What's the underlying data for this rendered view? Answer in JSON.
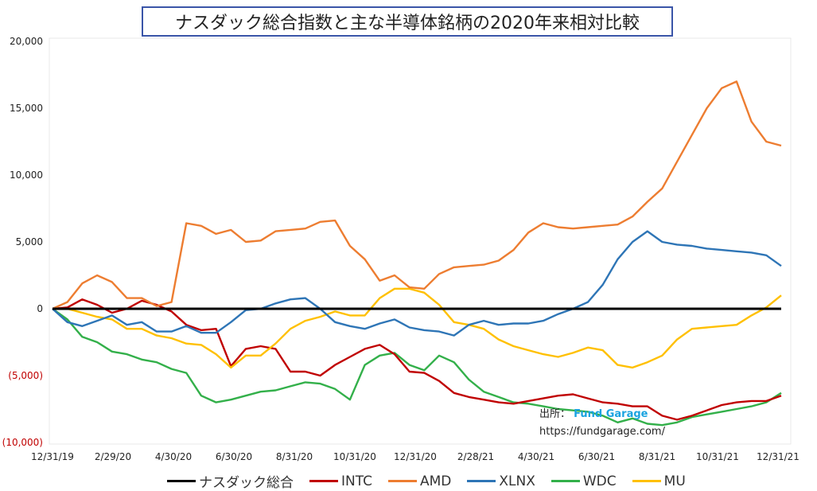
{
  "chart_data": {
    "type": "line",
    "title": "ナスダック総合指数と主な半導体銘柄の2020年来相対比較",
    "xlabel": "",
    "ylabel": "",
    "ylim": [
      -10000,
      20000
    ],
    "yticks": [
      {
        "value": 20000,
        "label": "20,000"
      },
      {
        "value": 15000,
        "label": "15,000"
      },
      {
        "value": 10000,
        "label": "10,000"
      },
      {
        "value": 5000,
        "label": "5,000"
      },
      {
        "value": 0,
        "label": "0"
      },
      {
        "value": -5000,
        "label": "(5,000)"
      },
      {
        "value": -10000,
        "label": "(10,000)"
      }
    ],
    "x_ticks": [
      "12/31/19",
      "2/29/20",
      "4/30/20",
      "6/30/20",
      "8/31/20",
      "10/31/20",
      "12/31/20",
      "2/28/21",
      "4/30/21",
      "6/30/21",
      "8/31/21",
      "10/31/21",
      "12/31/21"
    ],
    "grid": "none",
    "legend_position": "bottom",
    "series": [
      {
        "name": "ナスダック総合",
        "color": "#000000",
        "values": [
          0,
          0,
          0,
          0,
          0,
          0,
          0,
          0,
          0,
          0,
          0,
          0,
          0,
          0,
          0,
          0,
          0,
          0,
          0,
          0,
          0,
          0,
          0,
          0,
          0,
          0,
          0,
          0,
          0,
          0,
          0,
          0,
          0,
          0,
          0,
          0,
          0,
          0,
          0,
          0,
          0,
          0,
          0,
          0,
          0,
          0,
          0,
          0,
          0,
          0
        ]
      },
      {
        "name": "INTC",
        "color": "#c00000",
        "values": [
          0,
          100,
          700,
          300,
          -300,
          0,
          600,
          300,
          -200,
          -1200,
          -1600,
          -1500,
          -4300,
          -3000,
          -2800,
          -3000,
          -4700,
          -4700,
          -5000,
          -4200,
          -3600,
          -3000,
          -2700,
          -3400,
          -4700,
          -4800,
          -5400,
          -6300,
          -6600,
          -6800,
          -7000,
          -7100,
          -6900,
          -6700,
          -6500,
          -6400,
          -6700,
          -7000,
          -7100,
          -7300,
          -7300,
          -8000,
          -8300,
          -8000,
          -7600,
          -7200,
          -7000,
          -6900,
          -6900,
          -6500
        ]
      },
      {
        "name": "AMD",
        "color": "#ed7d31",
        "values": [
          0,
          500,
          1900,
          2500,
          2000,
          800,
          800,
          200,
          500,
          6400,
          6200,
          5600,
          5900,
          5000,
          5100,
          5800,
          5900,
          6000,
          6500,
          6600,
          4700,
          3700,
          2100,
          2500,
          1600,
          1500,
          2600,
          3100,
          3200,
          3300,
          3600,
          4400,
          5700,
          6400,
          6100,
          6000,
          6100,
          6200,
          6300,
          6900,
          8000,
          9000,
          11000,
          13000,
          15000,
          16500,
          17000,
          14000,
          12500,
          12200
        ]
      },
      {
        "name": "XLNX",
        "color": "#2e75b6",
        "values": [
          0,
          -1000,
          -1300,
          -900,
          -500,
          -1200,
          -1000,
          -1700,
          -1700,
          -1300,
          -1800,
          -1800,
          -1000,
          -100,
          0,
          400,
          700,
          800,
          0,
          -1000,
          -1300,
          -1500,
          -1100,
          -800,
          -1400,
          -1600,
          -1700,
          -2000,
          -1200,
          -900,
          -1200,
          -1100,
          -1100,
          -900,
          -400,
          0,
          500,
          1800,
          3700,
          5000,
          5800,
          5000,
          4800,
          4700,
          4500,
          4400,
          4300,
          4200,
          4000,
          3200
        ]
      },
      {
        "name": "WDC",
        "color": "#33b04a",
        "values": [
          0,
          -800,
          -2100,
          -2500,
          -3200,
          -3400,
          -3800,
          -4000,
          -4500,
          -4800,
          -6500,
          -7000,
          -6800,
          -6500,
          -6200,
          -6100,
          -5800,
          -5500,
          -5600,
          -6000,
          -6800,
          -4200,
          -3500,
          -3300,
          -4200,
          -4600,
          -3500,
          -4000,
          -5300,
          -6200,
          -6600,
          -7000,
          -7100,
          -7300,
          -7500,
          -7600,
          -7700,
          -8000,
          -8500,
          -8200,
          -8600,
          -8700,
          -8500,
          -8100,
          -7900,
          -7700,
          -7500,
          -7300,
          -7000,
          -6300
        ]
      },
      {
        "name": "MU",
        "color": "#ffc000",
        "values": [
          0,
          0,
          -300,
          -600,
          -800,
          -1500,
          -1500,
          -2000,
          -2200,
          -2600,
          -2700,
          -3400,
          -4400,
          -3500,
          -3500,
          -2600,
          -1500,
          -900,
          -600,
          -200,
          -500,
          -500,
          800,
          1500,
          1500,
          1200,
          300,
          -1000,
          -1200,
          -1500,
          -2300,
          -2800,
          -3100,
          -3400,
          -3600,
          -3300,
          -2900,
          -3100,
          -4200,
          -4400,
          -4000,
          -3500,
          -2300,
          -1500,
          -1400,
          -1300,
          -1200,
          -500,
          100,
          1000
        ]
      }
    ]
  },
  "source": {
    "label": "出所：",
    "brand": "Fund Garage",
    "url": "https://fundgarage.com/"
  }
}
